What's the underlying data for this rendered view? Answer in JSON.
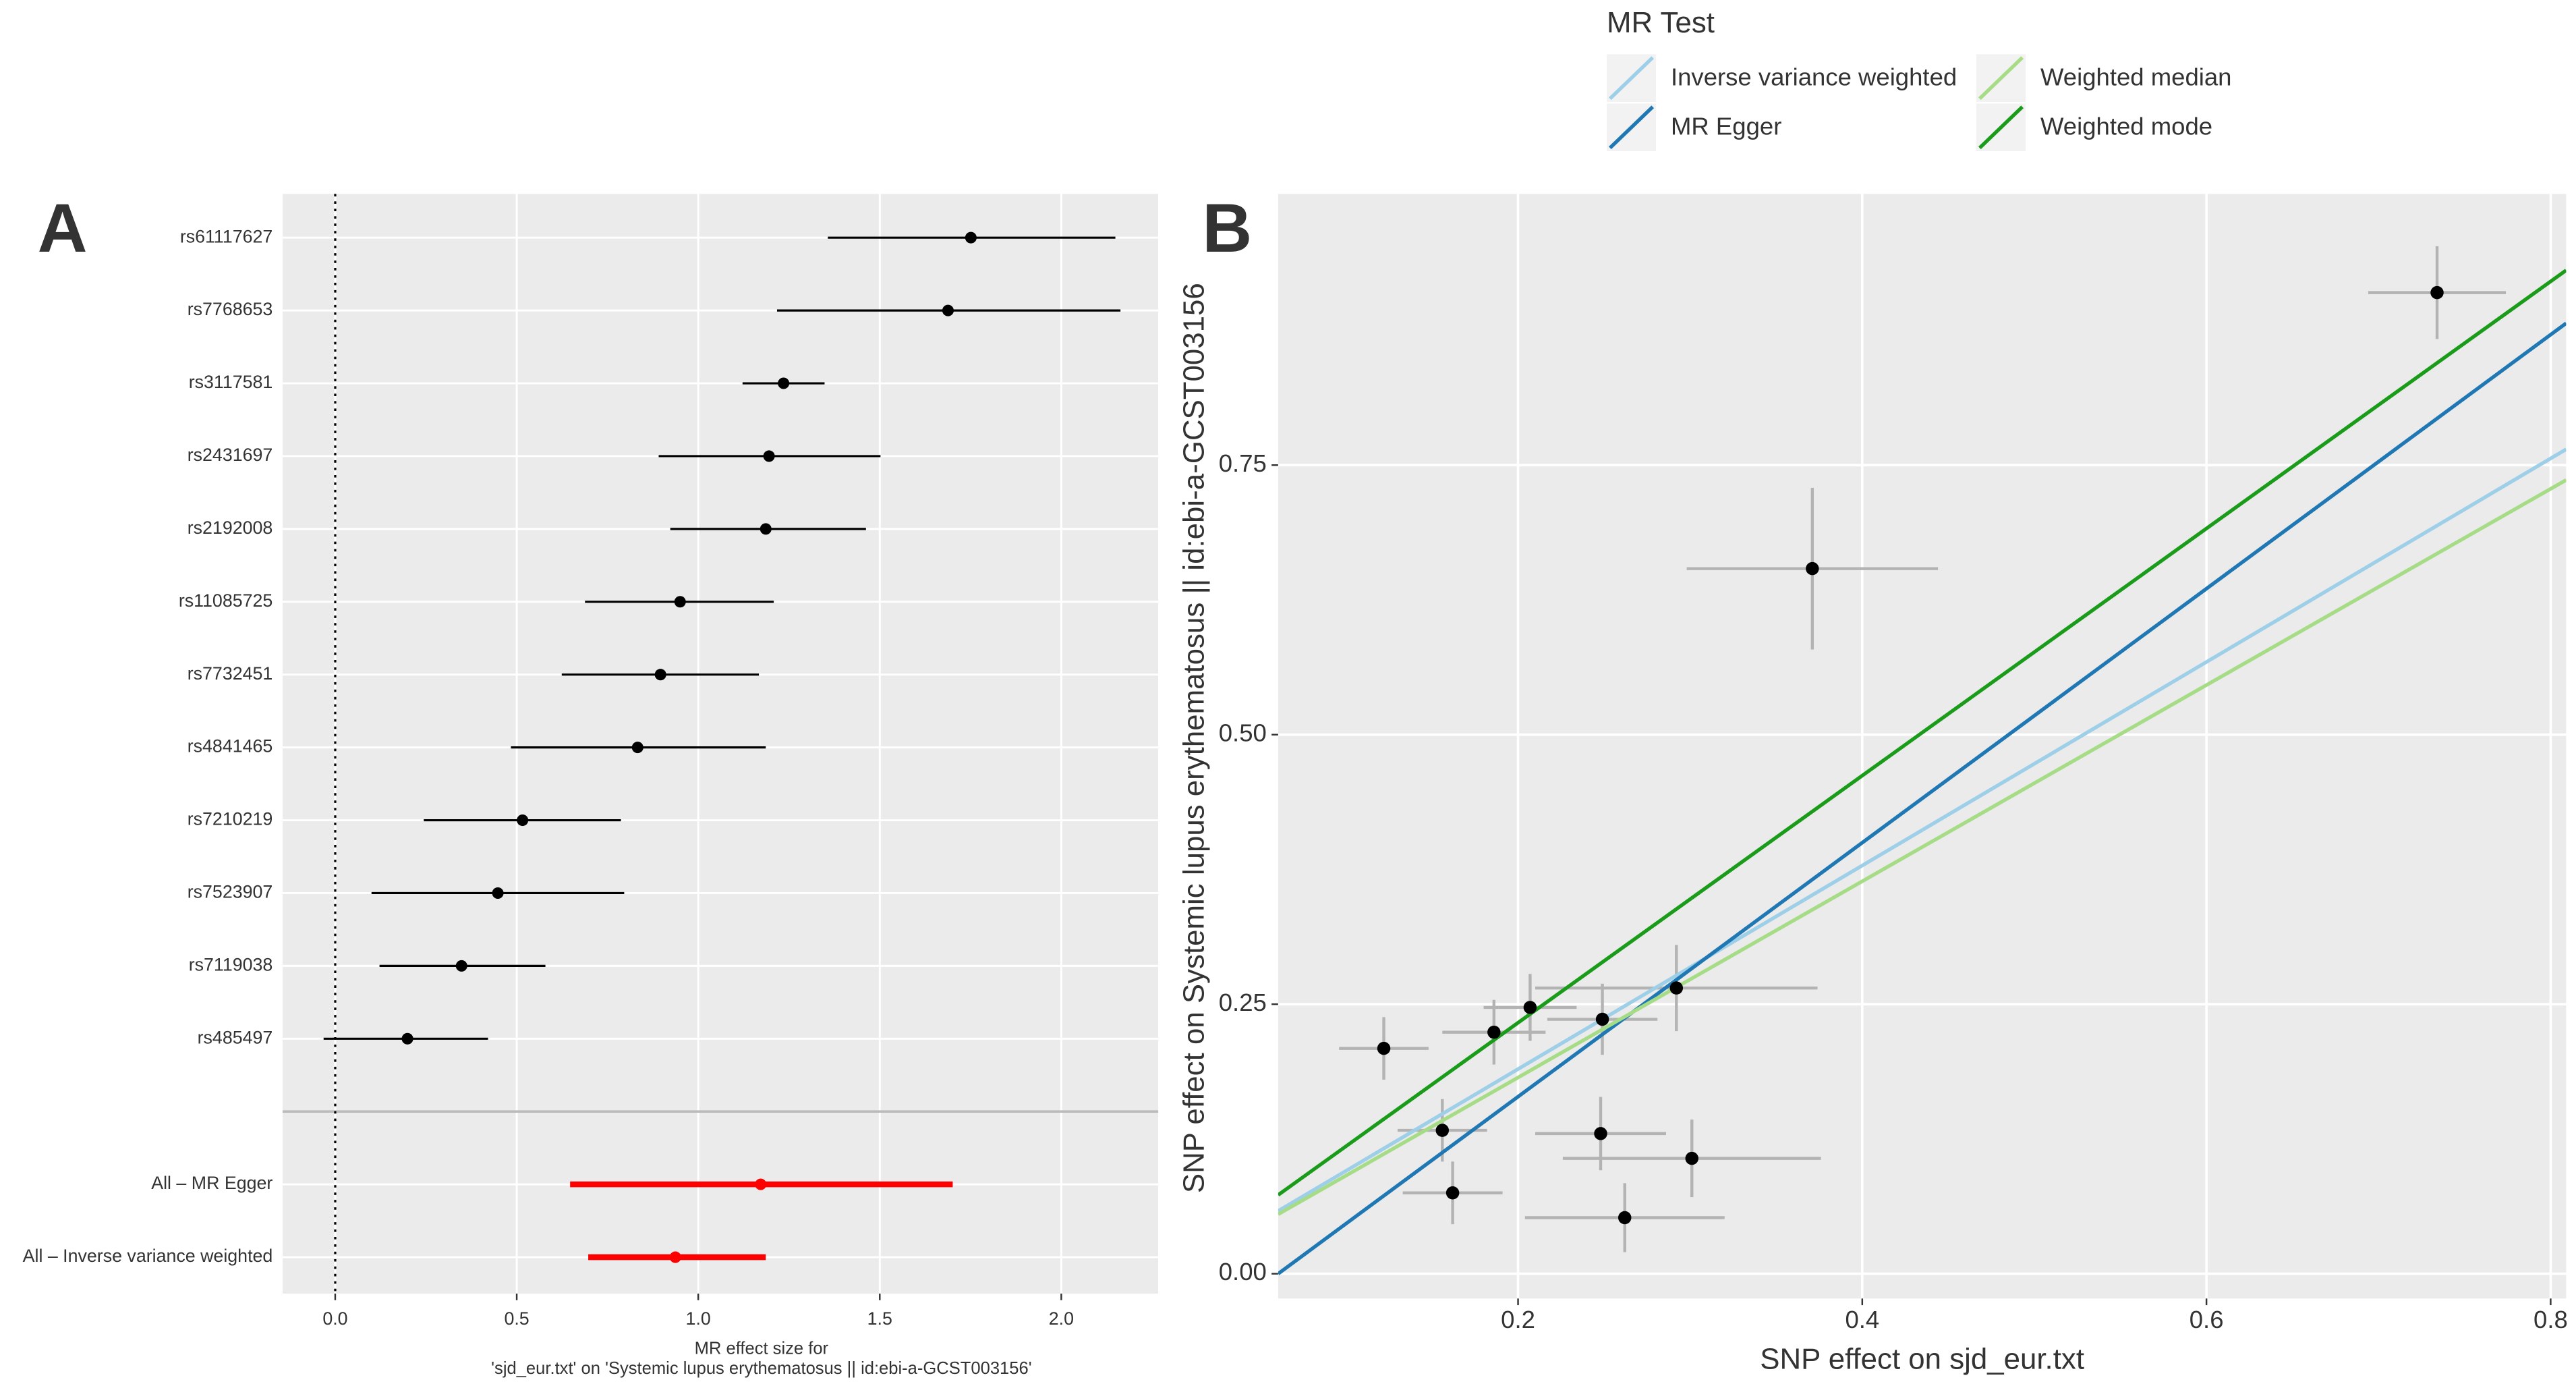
{
  "chart_data": [
    {
      "type": "forest",
      "panel_label": "A",
      "categories": [
        "rs61117627",
        "rs7768653",
        "rs3117581",
        "rs2431697",
        "rs2192008",
        "rs11085725",
        "rs7732451",
        "rs4841465",
        "rs7210219",
        "rs7523907",
        "rs7119038",
        "rs485497",
        null,
        "All – MR Egger",
        "All – Inverse variance weighted"
      ],
      "values": [
        1.751,
        1.688,
        1.235,
        1.195,
        1.186,
        0.95,
        0.896,
        0.833,
        0.516,
        0.448,
        0.348,
        0.199,
        null,
        1.172,
        0.937
      ],
      "lower": [
        1.357,
        1.217,
        1.122,
        0.891,
        0.923,
        0.688,
        0.624,
        0.484,
        0.244,
        0.1,
        0.122,
        -0.032,
        null,
        0.647,
        0.697
      ],
      "upper": [
        2.149,
        2.163,
        1.348,
        1.502,
        1.462,
        1.208,
        1.167,
        1.186,
        0.787,
        0.796,
        0.579,
        0.421,
        null,
        1.701,
        1.186
      ],
      "colors": [
        "#000000",
        "#000000",
        "#000000",
        "#000000",
        "#000000",
        "#000000",
        "#000000",
        "#000000",
        "#000000",
        "#000000",
        "#000000",
        "#000000",
        null,
        "#ff0000",
        "#ff0000"
      ],
      "xlim": [
        -0.145,
        2.267
      ],
      "xticks": [
        {
          "value": 0,
          "label": "0.0"
        },
        0.5,
        {
          "value": 1,
          "label": "1.0"
        },
        1.5,
        {
          "value": 2,
          "label": "2.0"
        }
      ],
      "reference_line": 0,
      "xlabel": [
        "MR effect size for",
        "'sjd_eur.txt' on 'Systemic lupus erythematosus || id:ebi-a-GCST003156'"
      ],
      "grid": true
    },
    {
      "type": "scatter",
      "panel_label": "B",
      "x": [
        0.734,
        0.371,
        0.292,
        0.207,
        0.249,
        0.186,
        0.122,
        0.156,
        0.248,
        0.301,
        0.162,
        0.262
      ],
      "x_se": [
        0.04,
        0.073,
        0.082,
        0.027,
        0.032,
        0.03,
        0.026,
        0.026,
        0.038,
        0.075,
        0.029,
        0.058
      ],
      "y": [
        0.91,
        0.654,
        0.265,
        0.247,
        0.236,
        0.224,
        0.209,
        0.133,
        0.13,
        0.107,
        0.075,
        0.052
      ],
      "y_se": [
        0.043,
        0.075,
        0.04,
        0.031,
        0.033,
        0.03,
        0.029,
        0.029,
        0.034,
        0.036,
        0.029,
        0.032
      ],
      "point_color": "#000000",
      "error_color": "#b3b3b3",
      "series": [
        {
          "name": "Inverse variance weighted",
          "color": "#9ecfe8",
          "slope": 0.944,
          "intercept": 0.001
        },
        {
          "name": "MR Egger",
          "color": "#1f78b4",
          "slope": 1.178,
          "intercept": -0.0714
        },
        {
          "name": "Weighted median",
          "color": "#a6dc86",
          "slope": 0.91,
          "intercept": 0.0
        },
        {
          "name": "Weighted mode",
          "color": "#1a9c1a",
          "slope": 1.146,
          "intercept": 0.0036
        }
      ],
      "legend_title": "MR Test",
      "legend": "top",
      "xlim": [
        0.0606,
        0.809
      ],
      "ylim": [
        -0.023,
        1.0015
      ],
      "xticks": [
        0.2,
        0.4,
        0.6,
        0.8
      ],
      "yticks": [
        {
          "value": 0,
          "label": "0.00"
        },
        0.25,
        {
          "value": 0.5,
          "label": "0.50"
        },
        0.75
      ],
      "xlabel": "SNP effect on sjd_eur.txt",
      "ylabel": "SNP effect on Systemic lupus erythematosus || id:ebi-a-GCST003156",
      "grid": true
    }
  ]
}
